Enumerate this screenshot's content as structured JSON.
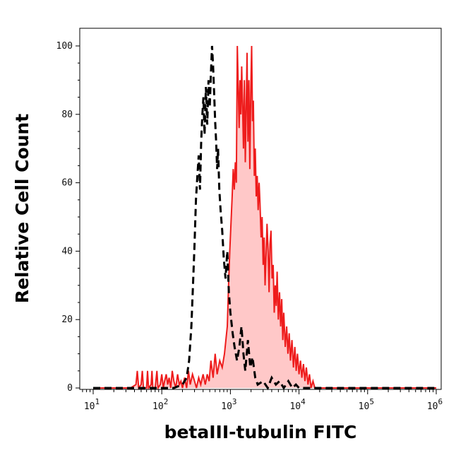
{
  "chart_data": {
    "type": "histogram",
    "title": "",
    "xlabel": "betaIII-tubulin FITC",
    "ylabel": "Relative Cell Count",
    "x_scale": "log",
    "xlim": [
      0.6,
      1.2
    ],
    "x_ticks": [
      {
        "base": "10",
        "exp": "1",
        "value": 10
      },
      {
        "base": "10",
        "exp": "2",
        "value": 100
      },
      {
        "base": "10",
        "exp": "3",
        "value": 1000
      },
      {
        "base": "10",
        "exp": "4",
        "value": 10000
      },
      {
        "base": "10",
        "exp": "5",
        "value": 100000
      },
      {
        "base": "10",
        "exp": "6",
        "value": 1000000
      }
    ],
    "ylim": [
      0,
      100
    ],
    "y_ticks": [
      "0",
      "20",
      "40",
      "60",
      "80",
      "100"
    ],
    "grid": false,
    "series": [
      {
        "style": "dashed",
        "color": "#000000",
        "fill": "none",
        "points": [
          [
            10,
            0
          ],
          [
            40,
            0
          ],
          [
            80,
            0
          ],
          [
            150,
            0
          ],
          [
            200,
            1
          ],
          [
            230,
            3
          ],
          [
            250,
            8
          ],
          [
            270,
            18
          ],
          [
            285,
            30
          ],
          [
            300,
            42
          ],
          [
            315,
            55
          ],
          [
            330,
            62
          ],
          [
            345,
            68
          ],
          [
            360,
            58
          ],
          [
            375,
            72
          ],
          [
            390,
            80
          ],
          [
            405,
            85
          ],
          [
            420,
            74
          ],
          [
            440,
            88
          ],
          [
            460,
            77
          ],
          [
            480,
            90
          ],
          [
            500,
            82
          ],
          [
            520,
            92
          ],
          [
            540,
            100
          ],
          [
            560,
            94
          ],
          [
            580,
            86
          ],
          [
            600,
            78
          ],
          [
            620,
            72
          ],
          [
            640,
            64
          ],
          [
            660,
            70
          ],
          [
            690,
            58
          ],
          [
            720,
            52
          ],
          [
            760,
            46
          ],
          [
            800,
            38
          ],
          [
            850,
            32
          ],
          [
            900,
            40
          ],
          [
            950,
            28
          ],
          [
            1000,
            22
          ],
          [
            1080,
            16
          ],
          [
            1150,
            12
          ],
          [
            1250,
            8
          ],
          [
            1350,
            12
          ],
          [
            1450,
            18
          ],
          [
            1550,
            10
          ],
          [
            1650,
            5
          ],
          [
            1800,
            14
          ],
          [
            1950,
            6
          ],
          [
            2100,
            9
          ],
          [
            2300,
            3
          ],
          [
            2500,
            1
          ],
          [
            3000,
            2
          ],
          [
            3500,
            0
          ],
          [
            4000,
            3
          ],
          [
            4600,
            1
          ],
          [
            5200,
            2
          ],
          [
            6000,
            0
          ],
          [
            7000,
            2
          ],
          [
            8000,
            0
          ],
          [
            9000,
            1
          ],
          [
            10000,
            0
          ],
          [
            20000,
            0
          ],
          [
            100000,
            0
          ],
          [
            1000000,
            0
          ]
        ]
      },
      {
        "style": "solid",
        "color": "#ee1c1c",
        "fill": "#ffc8c8",
        "points": [
          [
            10,
            0
          ],
          [
            35,
            0
          ],
          [
            42,
            1
          ],
          [
            44,
            5
          ],
          [
            46,
            0
          ],
          [
            50,
            1
          ],
          [
            52,
            5
          ],
          [
            54,
            0
          ],
          [
            60,
            0
          ],
          [
            62,
            5
          ],
          [
            64,
            0
          ],
          [
            70,
            1
          ],
          [
            72,
            5
          ],
          [
            74,
            0
          ],
          [
            80,
            0
          ],
          [
            85,
            5
          ],
          [
            88,
            0
          ],
          [
            95,
            1
          ],
          [
            100,
            4
          ],
          [
            105,
            0
          ],
          [
            110,
            2
          ],
          [
            116,
            4
          ],
          [
            122,
            1
          ],
          [
            128,
            3
          ],
          [
            135,
            0
          ],
          [
            142,
            5
          ],
          [
            150,
            2
          ],
          [
            160,
            0
          ],
          [
            170,
            4
          ],
          [
            180,
            1
          ],
          [
            190,
            2
          ],
          [
            200,
            0
          ],
          [
            215,
            3
          ],
          [
            230,
            0
          ],
          [
            245,
            5
          ],
          [
            260,
            1
          ],
          [
            280,
            4
          ],
          [
            300,
            2
          ],
          [
            320,
            0
          ],
          [
            345,
            3
          ],
          [
            370,
            1
          ],
          [
            400,
            4
          ],
          [
            430,
            1
          ],
          [
            460,
            4
          ],
          [
            490,
            2
          ],
          [
            520,
            8
          ],
          [
            560,
            3
          ],
          [
            600,
            10
          ],
          [
            640,
            4
          ],
          [
            700,
            8
          ],
          [
            760,
            6
          ],
          [
            820,
            10
          ],
          [
            860,
            14
          ],
          [
            900,
            18
          ],
          [
            940,
            30
          ],
          [
            980,
            40
          ],
          [
            1020,
            48
          ],
          [
            1060,
            56
          ],
          [
            1100,
            64
          ],
          [
            1140,
            58
          ],
          [
            1180,
            66
          ],
          [
            1220,
            60
          ],
          [
            1260,
            100
          ],
          [
            1300,
            88
          ],
          [
            1340,
            76
          ],
          [
            1380,
            90
          ],
          [
            1420,
            80
          ],
          [
            1460,
            94
          ],
          [
            1500,
            84
          ],
          [
            1550,
            70
          ],
          [
            1600,
            90
          ],
          [
            1650,
            66
          ],
          [
            1700,
            82
          ],
          [
            1750,
            98
          ],
          [
            1800,
            72
          ],
          [
            1860,
            90
          ],
          [
            1920,
            64
          ],
          [
            1980,
            86
          ],
          [
            2040,
            100
          ],
          [
            2100,
            78
          ],
          [
            2160,
            84
          ],
          [
            2230,
            62
          ],
          [
            2300,
            70
          ],
          [
            2380,
            56
          ],
          [
            2460,
            62
          ],
          [
            2540,
            52
          ],
          [
            2620,
            60
          ],
          [
            2700,
            54
          ],
          [
            2800,
            44
          ],
          [
            2900,
            50
          ],
          [
            3000,
            36
          ],
          [
            3100,
            44
          ],
          [
            3200,
            30
          ],
          [
            3300,
            38
          ],
          [
            3420,
            48
          ],
          [
            3540,
            40
          ],
          [
            3660,
            28
          ],
          [
            3780,
            42
          ],
          [
            3900,
            46
          ],
          [
            4050,
            32
          ],
          [
            4200,
            36
          ],
          [
            4350,
            22
          ],
          [
            4500,
            30
          ],
          [
            4650,
            24
          ],
          [
            4800,
            34
          ],
          [
            5000,
            20
          ],
          [
            5200,
            28
          ],
          [
            5400,
            18
          ],
          [
            5600,
            26
          ],
          [
            5800,
            14
          ],
          [
            6000,
            22
          ],
          [
            6300,
            12
          ],
          [
            6600,
            18
          ],
          [
            6900,
            10
          ],
          [
            7200,
            16
          ],
          [
            7500,
            8
          ],
          [
            7900,
            14
          ],
          [
            8300,
            6
          ],
          [
            8700,
            12
          ],
          [
            9100,
            5
          ],
          [
            9500,
            10
          ],
          [
            10000,
            4
          ],
          [
            10500,
            8
          ],
          [
            11000,
            3
          ],
          [
            11600,
            7
          ],
          [
            12200,
            2
          ],
          [
            12800,
            6
          ],
          [
            13500,
            1
          ],
          [
            14200,
            4
          ],
          [
            15000,
            0
          ],
          [
            16000,
            2
          ],
          [
            17000,
            0
          ],
          [
            20000,
            0
          ],
          [
            100000,
            0
          ],
          [
            1000000,
            0
          ]
        ]
      }
    ]
  }
}
